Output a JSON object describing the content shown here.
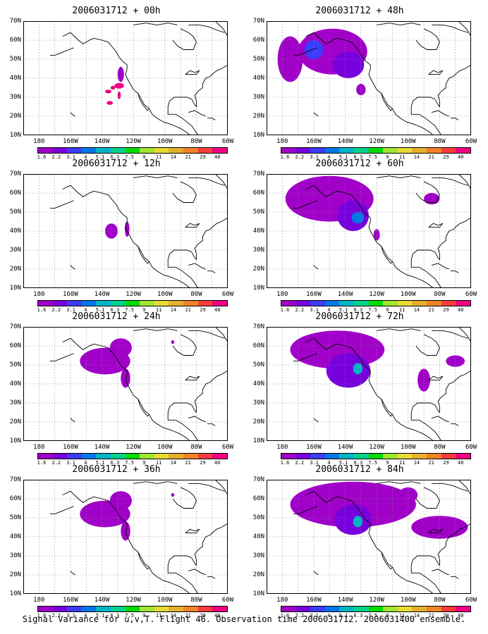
{
  "panels": [
    {
      "title": "2006031712 + 00h",
      "col": 0,
      "row": 0,
      "level": 0
    },
    {
      "title": "2006031712 + 48h",
      "col": 1,
      "row": 0,
      "level": 3
    },
    {
      "title": "2006031712 + 12h",
      "col": 0,
      "row": 1,
      "level": 1
    },
    {
      "title": "2006031712 + 60h",
      "col": 1,
      "row": 1,
      "level": 4
    },
    {
      "title": "2006031712 + 24h",
      "col": 0,
      "row": 2,
      "level": 2
    },
    {
      "title": "2006031712 + 72h",
      "col": 1,
      "row": 2,
      "level": 5
    },
    {
      "title": "2006031712 + 36h",
      "col": 0,
      "row": 3,
      "level": 2
    },
    {
      "title": "2006031712 + 84h",
      "col": 1,
      "row": 3,
      "level": 6
    }
  ],
  "lat_labels": [
    "70N",
    "60N",
    "50N",
    "40N",
    "30N",
    "20N",
    "10N"
  ],
  "lon_labels": [
    "180",
    "160W",
    "140W",
    "120W",
    "100W",
    "80W",
    "60W"
  ],
  "colorbar": {
    "labels": [
      "1.6",
      "2.2",
      "3.1",
      "4",
      "5.1",
      "6.3",
      "7.5",
      "9",
      "11",
      "14",
      "21",
      "29",
      "40"
    ],
    "colors": [
      "#a000c8",
      "#7800dc",
      "#3c3cff",
      "#0078e6",
      "#00b4c8",
      "#00d28c",
      "#00dc00",
      "#a0e632",
      "#e6dc32",
      "#e6af2d",
      "#f08228",
      "#fa3c3c",
      "#f00082"
    ]
  },
  "caption": "Signal Variance for u,v,T. Flight 46. Observation time 2006031712. 2006031400 ensemble."
}
